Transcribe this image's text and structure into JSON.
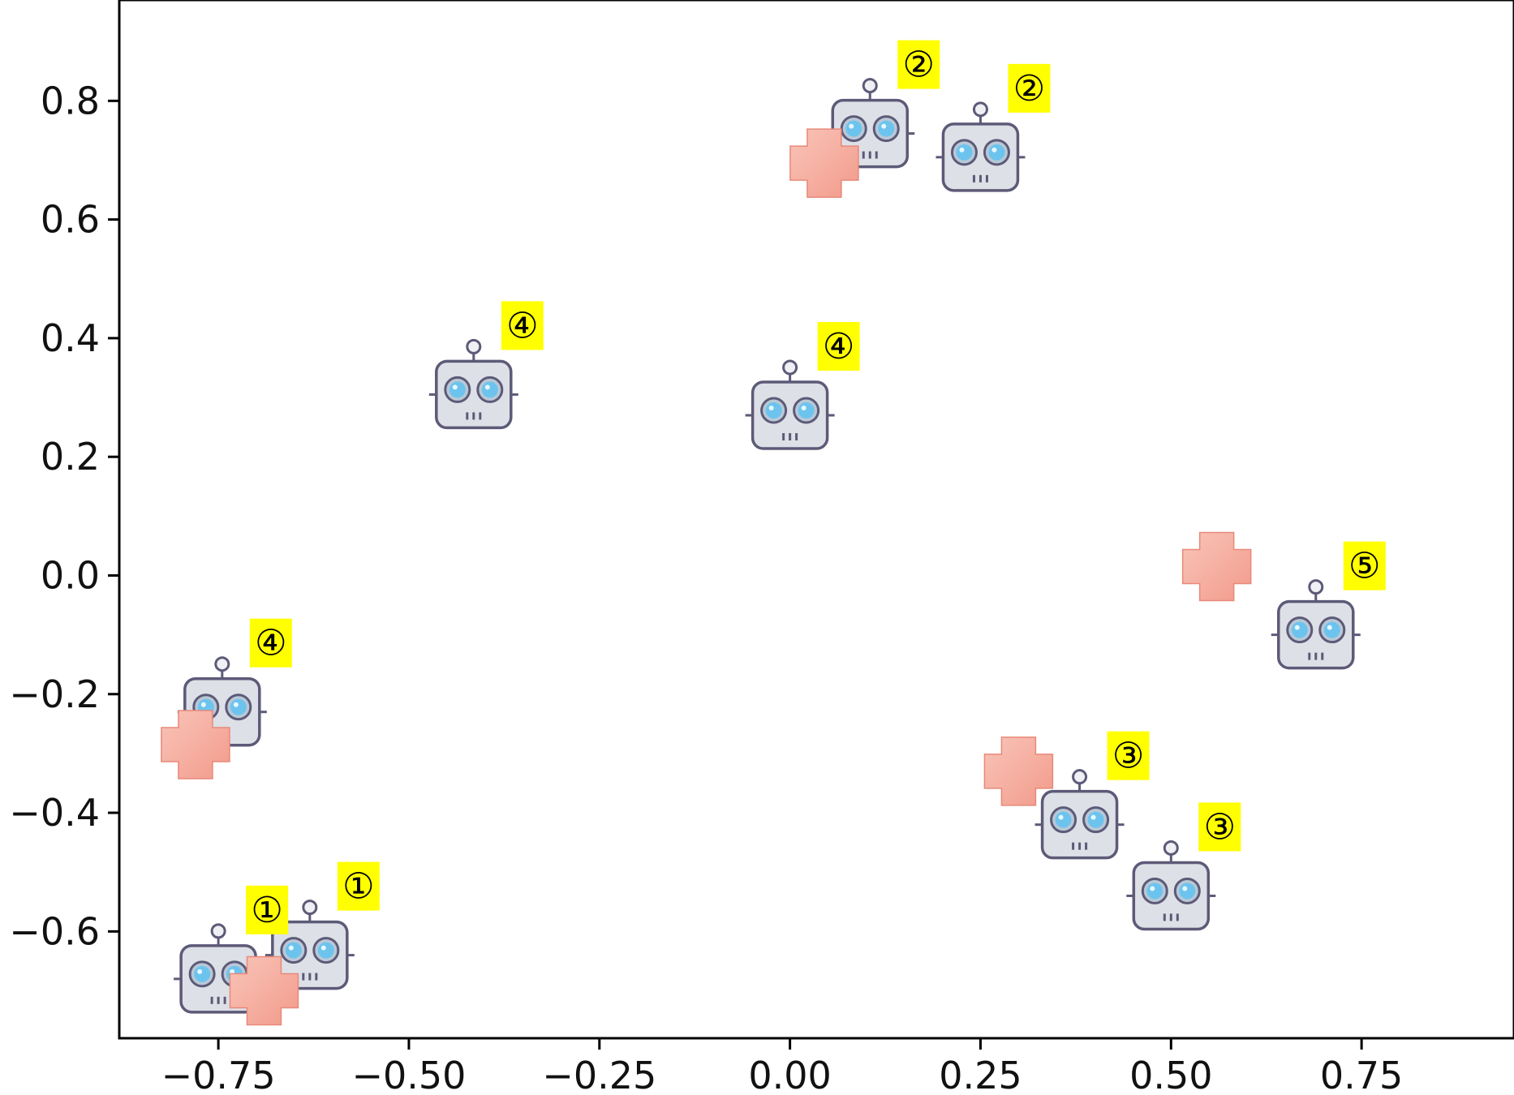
{
  "chart_data": {
    "type": "scatter",
    "title": "",
    "xlabel": "",
    "ylabel": "",
    "xlim": [
      -0.88,
      0.95
    ],
    "ylim": [
      -0.78,
      0.97
    ],
    "grid": false,
    "xticks": [
      -0.75,
      -0.5,
      -0.25,
      0.0,
      0.25,
      0.5,
      0.75
    ],
    "xtick_labels": [
      "−0.75",
      "−0.50",
      "−0.25",
      "0.00",
      "0.25",
      "0.50",
      "0.75"
    ],
    "yticks": [
      0.8,
      0.6,
      0.4,
      0.2,
      0.0,
      -0.2,
      -0.4,
      -0.6
    ],
    "ytick_labels": [
      "0.8",
      "0.6",
      "0.4",
      "0.2",
      "0.0",
      "−0.2",
      "−0.4",
      "−0.6"
    ],
    "series": [
      {
        "marker": "robot-icon",
        "points": [
          {
            "x": -0.75,
            "y": -0.68,
            "label": "①"
          },
          {
            "x": -0.63,
            "y": -0.64,
            "label": "①"
          },
          {
            "x": 0.105,
            "y": 0.745,
            "label": "②"
          },
          {
            "x": 0.25,
            "y": 0.705,
            "label": "②"
          },
          {
            "x": 0.38,
            "y": -0.42,
            "label": "③"
          },
          {
            "x": 0.5,
            "y": -0.54,
            "label": "③"
          },
          {
            "x": -0.415,
            "y": 0.305,
            "label": "④"
          },
          {
            "x": 0.0,
            "y": 0.27,
            "label": "④"
          },
          {
            "x": -0.745,
            "y": -0.23,
            "label": "④"
          },
          {
            "x": 0.69,
            "y": -0.1,
            "label": "⑤"
          }
        ]
      },
      {
        "marker": "plus-icon",
        "color": "#f4a89a",
        "points": [
          {
            "x": -0.69,
            "y": -0.7
          },
          {
            "x": 0.045,
            "y": 0.695
          },
          {
            "x": 0.3,
            "y": -0.33
          },
          {
            "x": 0.56,
            "y": 0.015
          },
          {
            "x": -0.78,
            "y": -0.285
          }
        ]
      }
    ],
    "colors": {
      "badge": "#ffff00",
      "robot_body": "#dde0e6",
      "robot_outline": "#5d5a78",
      "robot_eye": "#6cc4ee",
      "plus_fill": "#f4a89a",
      "plus_stroke": "#e8897a"
    }
  }
}
